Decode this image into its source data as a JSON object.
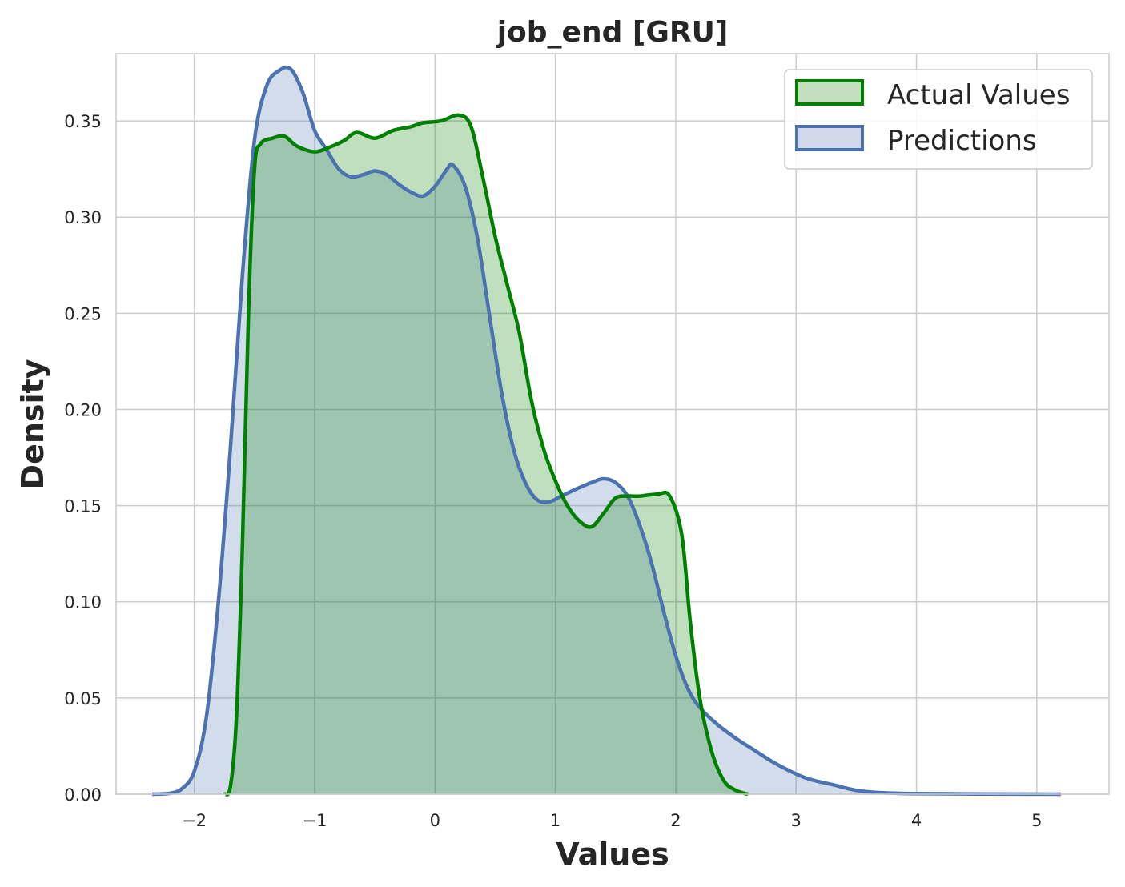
{
  "chart_data": {
    "type": "area",
    "title": "job_end [GRU]",
    "xlabel": "Values",
    "ylabel": "Density",
    "xlim": [
      -2.65,
      5.6
    ],
    "ylim": [
      0.0,
      0.385
    ],
    "x_ticks": [
      -2,
      -1,
      0,
      1,
      2,
      3,
      4,
      5
    ],
    "x_tick_labels": [
      "−2",
      "−1",
      "0",
      "1",
      "2",
      "3",
      "4",
      "5"
    ],
    "y_ticks": [
      0.0,
      0.05,
      0.1,
      0.15,
      0.2,
      0.25,
      0.3,
      0.35
    ],
    "y_tick_labels": [
      "0.00",
      "0.05",
      "0.10",
      "0.15",
      "0.20",
      "0.25",
      "0.30",
      "0.35"
    ],
    "grid": true,
    "legend_position": "top-right",
    "series": [
      {
        "name": "Actual Values",
        "color": "#008000",
        "fill": "#c2e0c0",
        "points": [
          [
            -1.75,
            0.0
          ],
          [
            -1.7,
            0.004
          ],
          [
            -1.65,
            0.04
          ],
          [
            -1.6,
            0.13
          ],
          [
            -1.55,
            0.25
          ],
          [
            -1.5,
            0.325
          ],
          [
            -1.45,
            0.338
          ],
          [
            -1.35,
            0.341
          ],
          [
            -1.25,
            0.342
          ],
          [
            -1.15,
            0.337
          ],
          [
            -1.0,
            0.334
          ],
          [
            -0.85,
            0.337
          ],
          [
            -0.75,
            0.34
          ],
          [
            -0.65,
            0.344
          ],
          [
            -0.5,
            0.341
          ],
          [
            -0.35,
            0.345
          ],
          [
            -0.2,
            0.347
          ],
          [
            -0.1,
            0.349
          ],
          [
            0.05,
            0.35
          ],
          [
            0.2,
            0.353
          ],
          [
            0.3,
            0.347
          ],
          [
            0.4,
            0.32
          ],
          [
            0.5,
            0.29
          ],
          [
            0.6,
            0.265
          ],
          [
            0.7,
            0.24
          ],
          [
            0.8,
            0.205
          ],
          [
            0.9,
            0.18
          ],
          [
            1.0,
            0.163
          ],
          [
            1.1,
            0.15
          ],
          [
            1.2,
            0.142
          ],
          [
            1.3,
            0.139
          ],
          [
            1.4,
            0.146
          ],
          [
            1.5,
            0.154
          ],
          [
            1.6,
            0.155
          ],
          [
            1.7,
            0.155
          ],
          [
            1.85,
            0.156
          ],
          [
            1.95,
            0.155
          ],
          [
            2.05,
            0.135
          ],
          [
            2.12,
            0.09
          ],
          [
            2.2,
            0.05
          ],
          [
            2.3,
            0.022
          ],
          [
            2.4,
            0.007
          ],
          [
            2.5,
            0.002
          ],
          [
            2.6,
            0.0
          ]
        ]
      },
      {
        "name": "Predictions",
        "color": "#4c72b0",
        "fill": "#d0d8ea",
        "points": [
          [
            -2.35,
            0.0
          ],
          [
            -2.2,
            0.0005
          ],
          [
            -2.1,
            0.003
          ],
          [
            -2.0,
            0.012
          ],
          [
            -1.9,
            0.04
          ],
          [
            -1.8,
            0.1
          ],
          [
            -1.7,
            0.18
          ],
          [
            -1.6,
            0.27
          ],
          [
            -1.5,
            0.34
          ],
          [
            -1.4,
            0.368
          ],
          [
            -1.3,
            0.376
          ],
          [
            -1.2,
            0.377
          ],
          [
            -1.1,
            0.365
          ],
          [
            -1.0,
            0.345
          ],
          [
            -0.9,
            0.335
          ],
          [
            -0.8,
            0.325
          ],
          [
            -0.7,
            0.321
          ],
          [
            -0.6,
            0.322
          ],
          [
            -0.5,
            0.324
          ],
          [
            -0.4,
            0.322
          ],
          [
            -0.3,
            0.317
          ],
          [
            -0.2,
            0.313
          ],
          [
            -0.1,
            0.311
          ],
          [
            0.0,
            0.316
          ],
          [
            0.1,
            0.325
          ],
          [
            0.15,
            0.327
          ],
          [
            0.25,
            0.316
          ],
          [
            0.35,
            0.29
          ],
          [
            0.45,
            0.25
          ],
          [
            0.55,
            0.21
          ],
          [
            0.65,
            0.18
          ],
          [
            0.75,
            0.162
          ],
          [
            0.85,
            0.153
          ],
          [
            0.95,
            0.152
          ],
          [
            1.05,
            0.155
          ],
          [
            1.15,
            0.158
          ],
          [
            1.3,
            0.162
          ],
          [
            1.4,
            0.164
          ],
          [
            1.5,
            0.162
          ],
          [
            1.6,
            0.155
          ],
          [
            1.7,
            0.14
          ],
          [
            1.8,
            0.12
          ],
          [
            1.9,
            0.095
          ],
          [
            2.0,
            0.072
          ],
          [
            2.1,
            0.055
          ],
          [
            2.2,
            0.045
          ],
          [
            2.35,
            0.036
          ],
          [
            2.5,
            0.029
          ],
          [
            2.65,
            0.023
          ],
          [
            2.8,
            0.017
          ],
          [
            2.95,
            0.012
          ],
          [
            3.1,
            0.008
          ],
          [
            3.3,
            0.005
          ],
          [
            3.5,
            0.002
          ],
          [
            3.7,
            0.0008
          ],
          [
            4.0,
            0.0003
          ],
          [
            4.5,
            0.0001
          ],
          [
            5.2,
            0.0
          ]
        ]
      }
    ]
  }
}
